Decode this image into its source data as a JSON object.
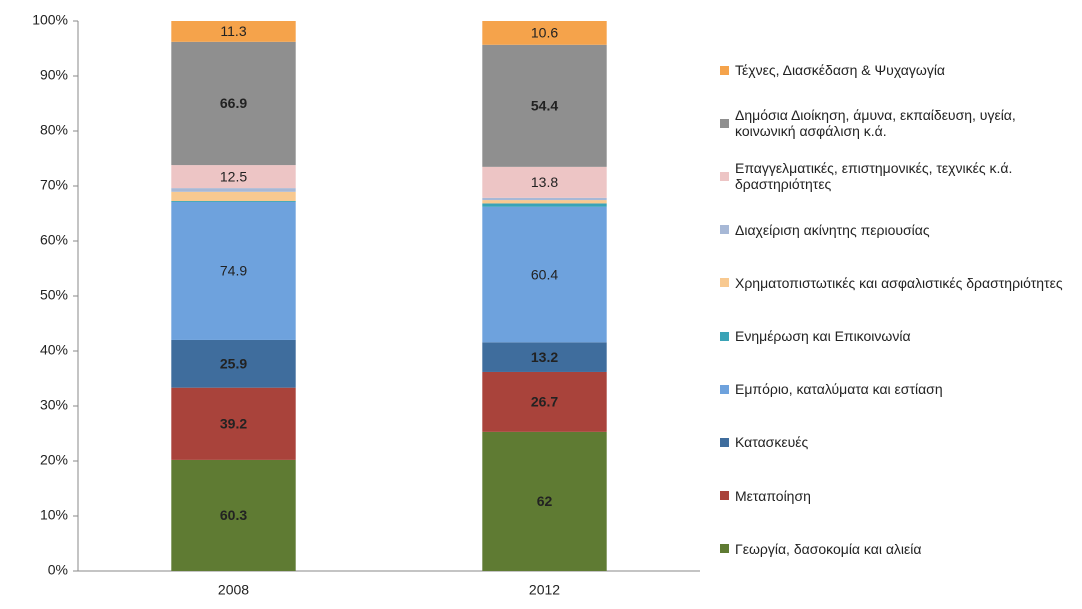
{
  "chart_data": {
    "type": "stacked_percent_bar",
    "categories": [
      "2008",
      "2012"
    ],
    "series": [
      {
        "name": "Γεωργία, δασοκομία και αλιεία",
        "color": "#5f7b33",
        "label_color": "#ffffff",
        "values": [
          60.3,
          62
        ]
      },
      {
        "name": "Μεταποίηση",
        "color": "#a9433b",
        "label_color": "#ffffff",
        "values": [
          39.2,
          26.7
        ]
      },
      {
        "name": "Κατασκευές",
        "color": "#3f6d9d",
        "label_color": "#ffffff",
        "values": [
          25.9,
          13.2
        ]
      },
      {
        "name": "Εμπόριο, καταλύματα και εστίαση",
        "color": "#6ea2dd",
        "label_color": "#111111",
        "values": [
          74.9,
          60.4
        ]
      },
      {
        "name": "Ενημέρωση και Επικοινωνία",
        "color": "#3aa3b6",
        "label_color": "#111111",
        "values": [
          0.5,
          1.5
        ]
      },
      {
        "name": "Χρηματοπιστωτικές και ασφαλιστικές δραστηριότητες",
        "color": "#f8c990",
        "label_color": "#111111",
        "values": [
          5,
          1.5
        ]
      },
      {
        "name": "Διαχείριση ακίνητης περιουσίας",
        "color": "#a7b8d6",
        "label_color": "#111111",
        "values": [
          2,
          1
        ]
      },
      {
        "name": "Επαγγελματικές, επιστημονικές, τεχνικές κ.ά. δραστηριότητες",
        "color": "#edc5c5",
        "label_color": "#111111",
        "values": [
          12.5,
          13.8
        ]
      },
      {
        "name": "Δημόσια Διοίκηση, άμυνα, εκπαίδευση, υγεία, κοινωνική ασφάλιση κ.ά.",
        "color": "#8f8f8f",
        "label_color": "#ffffff",
        "values": [
          66.9,
          54.4
        ]
      },
      {
        "name": "Τέχνες, Διασκέδαση & Ψυχαγωγία",
        "color": "#f5a34b",
        "label_color": "#111111",
        "values": [
          11.3,
          10.6
        ]
      }
    ],
    "ylim": [
      0,
      100
    ],
    "yticks": [
      {
        "value": 0,
        "label": "0%"
      },
      {
        "value": 10,
        "label": "10%"
      },
      {
        "value": 20,
        "label": "20%"
      },
      {
        "value": 30,
        "label": "30%"
      },
      {
        "value": 40,
        "label": "40%"
      },
      {
        "value": 50,
        "label": "50%"
      },
      {
        "value": 60,
        "label": "60%"
      },
      {
        "value": 70,
        "label": "70%"
      },
      {
        "value": 80,
        "label": "80%"
      },
      {
        "value": 90,
        "label": "90%"
      },
      {
        "value": 100,
        "label": "100%"
      }
    ],
    "legend": "right"
  }
}
